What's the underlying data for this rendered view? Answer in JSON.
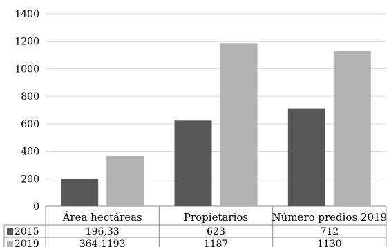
{
  "chart_data": {
    "type": "bar",
    "categories": [
      "Área hectáreas",
      "Propietarios",
      "Número predios 2019"
    ],
    "series": [
      {
        "name": "2015",
        "values": [
          196.33,
          623,
          712
        ],
        "labels": [
          "196,33",
          "623",
          "712"
        ],
        "color": "#575757"
      },
      {
        "name": "2019",
        "values": [
          364.1193,
          1187,
          1130
        ],
        "labels": [
          "364,1193",
          "1187",
          "1130"
        ],
        "color": "#b3b3b3"
      }
    ],
    "ylim": [
      0,
      1400
    ],
    "yticks": [
      0,
      200,
      400,
      600,
      800,
      1000,
      1200,
      1400
    ],
    "grid": true,
    "legend": "data-table",
    "title": "",
    "xlabel": "",
    "ylabel": ""
  }
}
